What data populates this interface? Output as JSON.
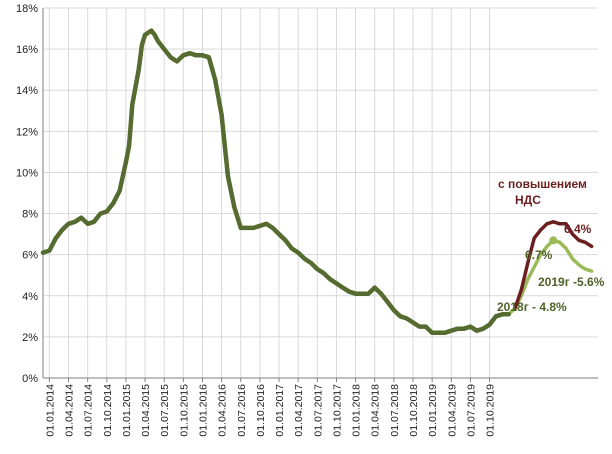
{
  "chart_data": {
    "type": "line",
    "ylim": [
      0,
      18
    ],
    "yticks": [
      "0%",
      "2%",
      "4%",
      "6%",
      "8%",
      "10%",
      "12%",
      "14%",
      "16%",
      "18%"
    ],
    "xticks": [
      "01.01.2014",
      "01.04.2014",
      "01.07.2014",
      "01.10.2014",
      "01.01.2015",
      "01.04.2015",
      "01.07.2015",
      "01.10.2015",
      "01.01.2016",
      "01.04.2016",
      "01.07.2016",
      "01.10.2016",
      "01.01.2017",
      "01.04.2017",
      "01.07.2017",
      "01.10.2017",
      "01.01.2018",
      "01.04.2018",
      "01.07.2018",
      "01.10.2018",
      "01.01.2019",
      "01.04.2019",
      "01.07.2019",
      "01.10.2019"
    ],
    "grid": true,
    "colors": {
      "actual": "#556b2f",
      "forecast_base": "#9bbb59",
      "forecast_vat": "#6b1f1f",
      "axis": "#7f7f7f",
      "grid": "#d9d9d9"
    },
    "series": [
      {
        "key": "actual",
        "x": [
          0,
          1,
          2,
          3,
          4,
          5,
          6,
          7,
          8,
          9,
          10,
          11,
          12,
          13,
          13.5,
          14,
          15,
          15.5,
          16,
          17,
          17.5,
          18,
          19,
          20,
          21,
          22,
          23,
          24,
          25,
          26,
          27,
          28,
          29,
          30,
          31,
          32,
          33,
          34,
          35,
          36,
          37,
          38,
          39,
          40,
          41,
          42,
          43,
          44,
          45,
          46,
          47,
          48,
          49,
          50,
          51,
          52,
          53,
          54,
          55,
          56,
          57,
          58,
          59,
          60,
          61,
          62,
          63,
          64,
          65,
          66,
          67,
          68,
          69,
          70,
          71,
          72,
          73
        ],
        "y": [
          6.1,
          6.2,
          6.8,
          7.2,
          7.5,
          7.6,
          7.8,
          7.5,
          7.6,
          8.0,
          8.1,
          8.5,
          9.1,
          10.5,
          11.3,
          13.3,
          15.0,
          16.2,
          16.7,
          16.9,
          16.7,
          16.4,
          16.0,
          15.6,
          15.4,
          15.7,
          15.8,
          15.7,
          15.7,
          15.6,
          14.5,
          12.8,
          9.8,
          8.3,
          7.3,
          7.3,
          7.3,
          7.4,
          7.5,
          7.3,
          7.0,
          6.7,
          6.3,
          6.1,
          5.8,
          5.6,
          5.3,
          5.1,
          4.8,
          4.6,
          4.4,
          4.2,
          4.1,
          4.1,
          4.1,
          4.4,
          4.1,
          3.7,
          3.3,
          3.0,
          2.9,
          2.7,
          2.5,
          2.5,
          2.2,
          2.2,
          2.2,
          2.3,
          2.4,
          2.4,
          2.5,
          2.3,
          2.4,
          2.6,
          3.0,
          3.1,
          3.1
        ]
      },
      {
        "key": "forecast_base",
        "x": [
          73,
          74,
          75,
          76,
          77,
          78,
          79,
          80,
          81,
          82,
          83,
          84,
          85,
          86
        ],
        "y": [
          3.1,
          3.4,
          4.0,
          4.8,
          5.4,
          6.0,
          6.4,
          6.7,
          6.6,
          6.3,
          5.8,
          5.5,
          5.3,
          5.2
        ]
      },
      {
        "key": "forecast_vat",
        "x": [
          74,
          75,
          76,
          77,
          78,
          79,
          80,
          81,
          82,
          83,
          84,
          85,
          86
        ],
        "y": [
          3.4,
          4.3,
          5.6,
          6.8,
          7.2,
          7.5,
          7.6,
          7.5,
          7.5,
          7.0,
          6.7,
          6.6,
          6.4
        ]
      }
    ],
    "annotations": {
      "vat_line1": "с повышением",
      "vat_line2": "НДС",
      "vat_end": "6.4%",
      "peak_2019": "6.7%",
      "avg_2019": "2019г -5.6%",
      "avg_2018": "2018г - 4.8%"
    }
  }
}
